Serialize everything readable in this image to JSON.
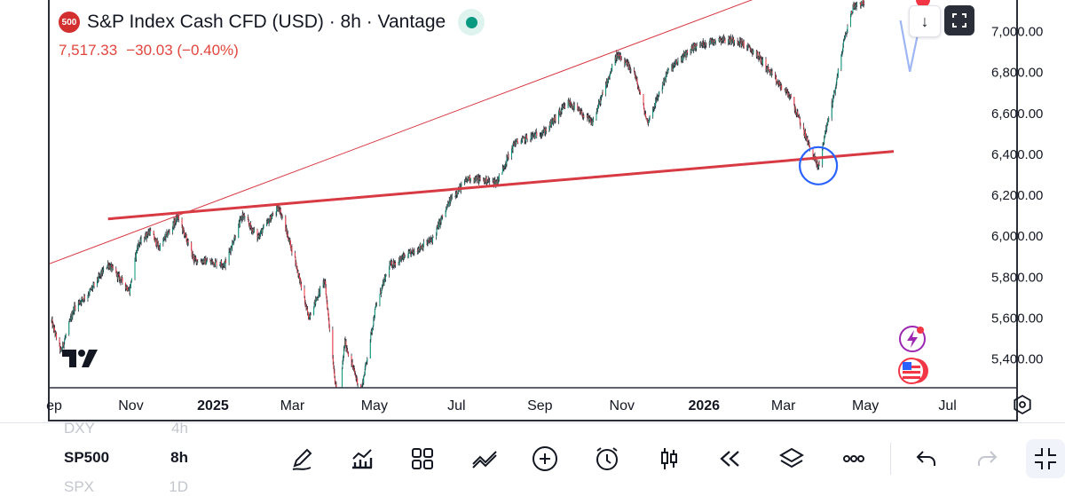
{
  "header": {
    "symbol_badge": "500",
    "title": "S&P Index Cash CFD (USD) · 8h · Vantage",
    "last_price": "7,517.33",
    "change": "−30.03 (−0.40%)"
  },
  "controls": {
    "down_icon": "arrow-down-icon",
    "fullscreen_icon": "fullscreen-icon"
  },
  "chart_data": {
    "type": "candlestick",
    "symbol": "SP500",
    "interval": "8h",
    "x_axis_labels": [
      "ep",
      "Nov",
      "2025",
      "Mar",
      "May",
      "Jul",
      "Sep",
      "Nov",
      "2026",
      "Mar",
      "May",
      "Jul"
    ],
    "y_axis_labels": [
      "7,000.00",
      "6,800.00",
      "6,600.00",
      "6,400.00",
      "6,200.00",
      "6,000.00",
      "5,800.00",
      "5,600.00",
      "5,400.00"
    ],
    "y_ticks": [
      7000,
      6800,
      6600,
      6400,
      6200,
      6000,
      5800,
      5600,
      5400
    ],
    "ylim": [
      5255,
      7150
    ],
    "xlim": [
      "2024-09-01",
      "2026-07-25"
    ],
    "last_price": 7517.33,
    "price_path": [
      [
        "2024-09-03",
        5580
      ],
      [
        "2024-09-10",
        5430
      ],
      [
        "2024-09-20",
        5650
      ],
      [
        "2024-10-01",
        5720
      ],
      [
        "2024-10-15",
        5860
      ],
      [
        "2024-10-31",
        5730
      ],
      [
        "2024-11-06",
        5950
      ],
      [
        "2024-11-15",
        6020
      ],
      [
        "2024-11-22",
        5940
      ],
      [
        "2024-12-06",
        6090
      ],
      [
        "2024-12-18",
        5880
      ],
      [
        "2025-01-10",
        5860
      ],
      [
        "2025-01-23",
        6100
      ],
      [
        "2025-02-03",
        5990
      ],
      [
        "2025-02-19",
        6140
      ],
      [
        "2025-03-03",
        5880
      ],
      [
        "2025-03-13",
        5600
      ],
      [
        "2025-03-25",
        5780
      ],
      [
        "2025-04-04",
        5150
      ],
      [
        "2025-04-09",
        5480
      ],
      [
        "2025-04-21",
        5230
      ],
      [
        "2025-05-02",
        5650
      ],
      [
        "2025-05-12",
        5850
      ],
      [
        "2025-05-30",
        5920
      ],
      [
        "2025-06-13",
        5980
      ],
      [
        "2025-06-27",
        6180
      ],
      [
        "2025-07-10",
        6280
      ],
      [
        "2025-07-31",
        6260
      ],
      [
        "2025-08-13",
        6450
      ],
      [
        "2025-09-05",
        6510
      ],
      [
        "2025-09-22",
        6650
      ],
      [
        "2025-10-10",
        6550
      ],
      [
        "2025-10-28",
        6880
      ],
      [
        "2025-11-10",
        6800
      ],
      [
        "2025-11-20",
        6550
      ],
      [
        "2025-12-05",
        6800
      ],
      [
        "2025-12-24",
        6920
      ],
      [
        "2026-01-12",
        6960
      ],
      [
        "2026-01-27",
        6950
      ],
      [
        "2026-02-10",
        6880
      ],
      [
        "2026-02-24",
        6750
      ],
      [
        "2026-03-06",
        6680
      ],
      [
        "2026-03-20",
        6440
      ],
      [
        "2026-03-27",
        6330
      ],
      [
        "2026-04-01",
        6500
      ],
      [
        "2026-04-08",
        6700
      ],
      [
        "2026-04-15",
        6950
      ],
      [
        "2026-04-22",
        7120
      ],
      [
        "2026-04-30",
        7140
      ]
    ],
    "projection": [
      [
        "2026-05-27",
        7050
      ],
      [
        "2026-06-03",
        6800
      ],
      [
        "2026-06-12",
        7080
      ]
    ],
    "trendlines": [
      {
        "style": "thin",
        "from": [
          "2024-09-01",
          5860
        ],
        "to": [
          "2026-04-07",
          7300
        ]
      },
      {
        "style": "bold",
        "from": [
          "2024-10-15",
          6080
        ],
        "to": [
          "2026-05-22",
          6410
        ]
      }
    ],
    "circle_annotation": {
      "date": "2026-03-27",
      "price": 6340
    }
  },
  "toolbar": {
    "symbols": [
      {
        "name": "DXY",
        "interval": "4h"
      },
      {
        "name": "SP500",
        "interval": "8h"
      },
      {
        "name": "SPX",
        "interval": "1D"
      }
    ],
    "tools": [
      "pencil-icon",
      "indicators-icon",
      "grid-icon",
      "trend-tool-icon",
      "add-icon",
      "alarm-icon",
      "candles-icon",
      "replay-icon",
      "layers-icon",
      "more-icon",
      "undo-icon",
      "redo-icon",
      "collapse-icon"
    ]
  },
  "colors": {
    "up": "#089981",
    "down": "#f23645",
    "candle_body": "#2a2e39",
    "trend_red": "#d83a43",
    "circle": "#2962ff",
    "projection": "#9fb6f5"
  }
}
